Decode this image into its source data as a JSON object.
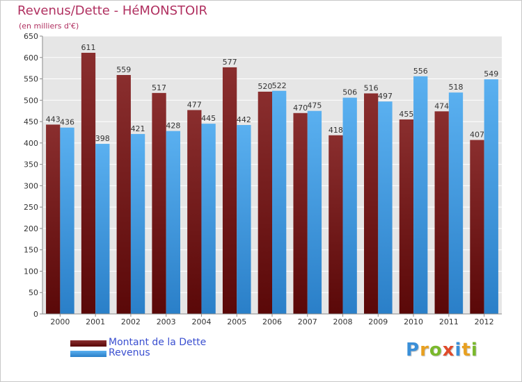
{
  "header": {
    "title": "Revenus/Dette - HéMONSTOIR",
    "subtitle": "(en milliers d'€)"
  },
  "chart_data": {
    "type": "bar",
    "title": "Revenus/Dette - HéMONSTOIR",
    "subtitle": "(en milliers d'€)",
    "categories": [
      "2000",
      "2001",
      "2002",
      "2003",
      "2004",
      "2005",
      "2006",
      "2007",
      "2008",
      "2009",
      "2010",
      "2011",
      "2012"
    ],
    "series": [
      {
        "name": "Montant de la Dette",
        "values": [
          443,
          611,
          559,
          517,
          477,
          577,
          520,
          470,
          418,
          516,
          455,
          474,
          407
        ],
        "color": "#7a1a1a"
      },
      {
        "name": "Revenus",
        "values": [
          436,
          398,
          421,
          428,
          445,
          442,
          522,
          475,
          506,
          497,
          556,
          518,
          549
        ],
        "color": "#4aa3e8"
      }
    ],
    "yticks": [
      0,
      50,
      100,
      150,
      200,
      250,
      300,
      350,
      400,
      450,
      500,
      550,
      600,
      650
    ],
    "ylim": [
      0,
      650
    ],
    "grid": true,
    "xlabel": "",
    "ylabel": "",
    "legend_position": "bottom-left"
  },
  "legend": {
    "items": [
      {
        "label": "Montant de la Dette",
        "color": "#6e1414"
      },
      {
        "label": "Revenus",
        "color": "#4aa3e8"
      }
    ]
  },
  "logo": {
    "letters": [
      "P",
      "r",
      "o",
      "x",
      "i",
      "t",
      "i"
    ],
    "colors": [
      "#3a8fd8",
      "#e8a020",
      "#7ab82c",
      "#e04a2a",
      "#3a8fd8",
      "#e8a020",
      "#7ab82c"
    ]
  }
}
